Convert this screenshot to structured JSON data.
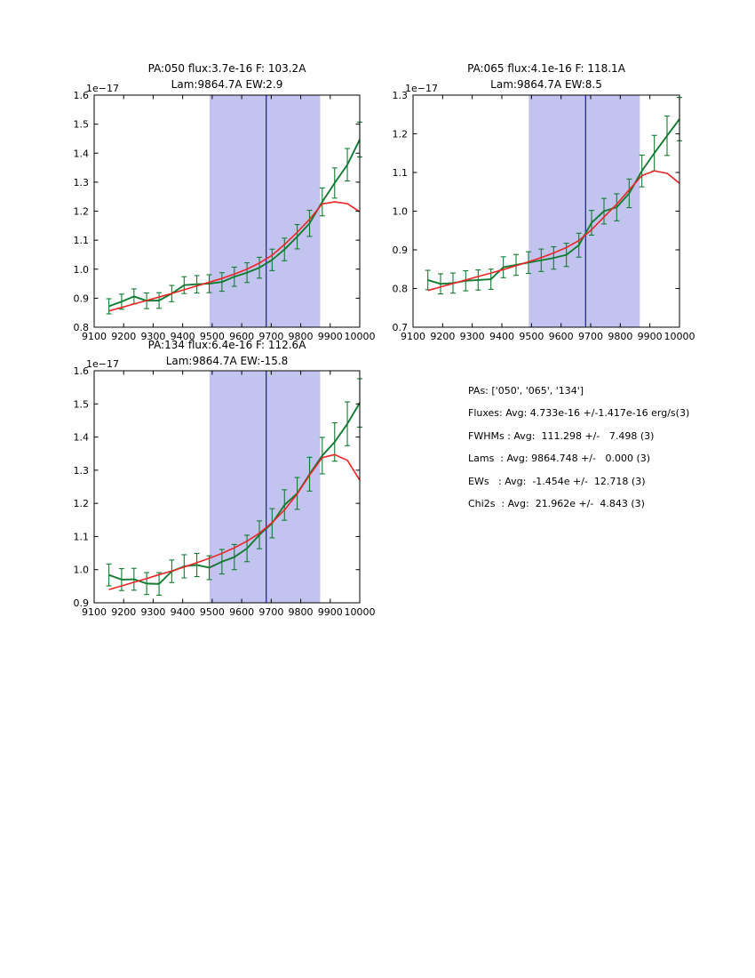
{
  "colors": {
    "background": "#ffffff",
    "band": "#c3c3f0",
    "vline": "#2222bb",
    "data": "#107c30",
    "model": "#ee2424",
    "frame": "#000000"
  },
  "chart_data": [
    {
      "type": "line",
      "title_line1": "PA:050 flux:3.7e-16 F: 103.2A",
      "title_line2": "Lam:9864.7A EW:2.9",
      "ylabel_offset": "1e−17",
      "xlim": [
        9100,
        10000
      ],
      "ylim": [
        0.8,
        1.6
      ],
      "x_ticks": [
        9100,
        9200,
        9300,
        9400,
        9500,
        9600,
        9700,
        9800,
        9900,
        10000
      ],
      "y_ticks": [
        "0.8",
        "0.9",
        "1.0",
        "1.1",
        "1.2",
        "1.3",
        "1.4",
        "1.5",
        "1.6"
      ],
      "shaded_band_x": [
        9491,
        9866
      ],
      "vline_x": 9683,
      "grid": false,
      "legend": null,
      "x": [
        9150,
        9193,
        9235,
        9278,
        9320,
        9363,
        9405,
        9448,
        9490,
        9533,
        9575,
        9618,
        9660,
        9703,
        9745,
        9788,
        9830,
        9873,
        9915,
        9958,
        10000
      ],
      "series": [
        {
          "name": "spectrum-with-errors",
          "values": [
            0.872,
            0.888,
            0.906,
            0.891,
            0.892,
            0.916,
            0.945,
            0.948,
            0.95,
            0.956,
            0.974,
            0.988,
            1.005,
            1.032,
            1.068,
            1.112,
            1.158,
            1.232,
            1.297,
            1.36,
            1.447
          ],
          "errors": [
            0.026,
            0.026,
            0.026,
            0.027,
            0.027,
            0.028,
            0.029,
            0.03,
            0.031,
            0.032,
            0.033,
            0.034,
            0.036,
            0.037,
            0.039,
            0.042,
            0.045,
            0.048,
            0.052,
            0.056,
            0.06
          ]
        },
        {
          "name": "model-fit",
          "values": [
            0.856,
            0.868,
            0.88,
            0.892,
            0.904,
            0.916,
            0.929,
            0.942,
            0.955,
            0.968,
            0.983,
            1.0,
            1.021,
            1.048,
            1.085,
            1.127,
            1.172,
            1.225,
            1.232,
            1.226,
            1.198
          ]
        }
      ]
    },
    {
      "type": "line",
      "title_line1": "PA:065 flux:4.1e-16 F: 118.1A",
      "title_line2": "Lam:9864.7A EW:8.5",
      "ylabel_offset": "1e−17",
      "xlim": [
        9100,
        10000
      ],
      "ylim": [
        0.7,
        1.3
      ],
      "x_ticks": [
        9100,
        9200,
        9300,
        9400,
        9500,
        9600,
        9700,
        9800,
        9900,
        10000
      ],
      "y_ticks": [
        "0.7",
        "0.8",
        "0.9",
        "1.0",
        "1.1",
        "1.2",
        "1.3"
      ],
      "shaded_band_x": [
        9491,
        9866
      ],
      "vline_x": 9683,
      "grid": false,
      "legend": null,
      "x": [
        9150,
        9193,
        9235,
        9278,
        9320,
        9363,
        9405,
        9448,
        9490,
        9533,
        9575,
        9618,
        9660,
        9703,
        9745,
        9788,
        9830,
        9873,
        9915,
        9958,
        10000
      ],
      "series": [
        {
          "name": "spectrum-with-errors",
          "values": [
            0.822,
            0.812,
            0.814,
            0.82,
            0.822,
            0.824,
            0.855,
            0.861,
            0.867,
            0.873,
            0.879,
            0.887,
            0.912,
            0.97,
            1.0,
            1.01,
            1.046,
            1.104,
            1.15,
            1.195,
            1.238
          ],
          "errors": [
            0.025,
            0.026,
            0.026,
            0.026,
            0.026,
            0.026,
            0.027,
            0.027,
            0.028,
            0.029,
            0.029,
            0.03,
            0.031,
            0.032,
            0.033,
            0.035,
            0.037,
            0.041,
            0.046,
            0.051,
            0.056
          ]
        },
        {
          "name": "model-fit",
          "values": [
            0.795,
            0.804,
            0.813,
            0.822,
            0.831,
            0.84,
            0.849,
            0.859,
            0.869,
            0.88,
            0.892,
            0.906,
            0.924,
            0.952,
            0.985,
            1.018,
            1.055,
            1.092,
            1.104,
            1.098,
            1.072
          ]
        }
      ]
    },
    {
      "type": "line",
      "title_line1": "PA:134 flux:6.4e-16 F: 112.6A",
      "title_line2": "Lam:9864.7A EW:-15.8",
      "ylabel_offset": "1e−17",
      "xlim": [
        9100,
        10000
      ],
      "ylim": [
        0.9,
        1.6
      ],
      "x_ticks": [
        9100,
        9200,
        9300,
        9400,
        9500,
        9600,
        9700,
        9800,
        9900,
        10000
      ],
      "y_ticks": [
        "0.9",
        "1.0",
        "1.1",
        "1.2",
        "1.3",
        "1.4",
        "1.5",
        "1.6"
      ],
      "shaded_band_x": [
        9491,
        9866
      ],
      "vline_x": 9683,
      "grid": false,
      "legend": null,
      "x": [
        9150,
        9193,
        9235,
        9278,
        9320,
        9363,
        9405,
        9448,
        9490,
        9533,
        9575,
        9618,
        9660,
        9703,
        9745,
        9788,
        9830,
        9873,
        9915,
        9958,
        10000
      ],
      "series": [
        {
          "name": "spectrum-with-errors",
          "values": [
            0.984,
            0.97,
            0.971,
            0.958,
            0.957,
            0.995,
            1.01,
            1.014,
            1.006,
            1.024,
            1.038,
            1.064,
            1.105,
            1.14,
            1.195,
            1.23,
            1.288,
            1.344,
            1.385,
            1.44,
            1.503
          ],
          "errors": [
            0.033,
            0.033,
            0.033,
            0.033,
            0.034,
            0.034,
            0.035,
            0.035,
            0.036,
            0.037,
            0.038,
            0.04,
            0.042,
            0.044,
            0.046,
            0.048,
            0.051,
            0.055,
            0.058,
            0.066,
            0.073
          ]
        },
        {
          "name": "model-fit",
          "values": [
            0.94,
            0.951,
            0.962,
            0.973,
            0.985,
            0.996,
            1.008,
            1.021,
            1.034,
            1.049,
            1.066,
            1.086,
            1.11,
            1.142,
            1.18,
            1.228,
            1.285,
            1.338,
            1.347,
            1.33,
            1.27
          ]
        }
      ]
    }
  ],
  "stats_panel": {
    "lines": [
      "PAs: ['050', '065', '134']",
      "Fluxes: Avg: 4.733e-16 +/-1.417e-16 erg/s(3)",
      "FWHMs : Avg:  111.298 +/-   7.498 (3)",
      "Lams  : Avg: 9864.748 +/-   0.000 (3)",
      "EWs   : Avg:  -1.454e +/-  12.718 (3)",
      "Chi2s  : Avg:  21.962e +/-  4.843 (3)"
    ]
  }
}
